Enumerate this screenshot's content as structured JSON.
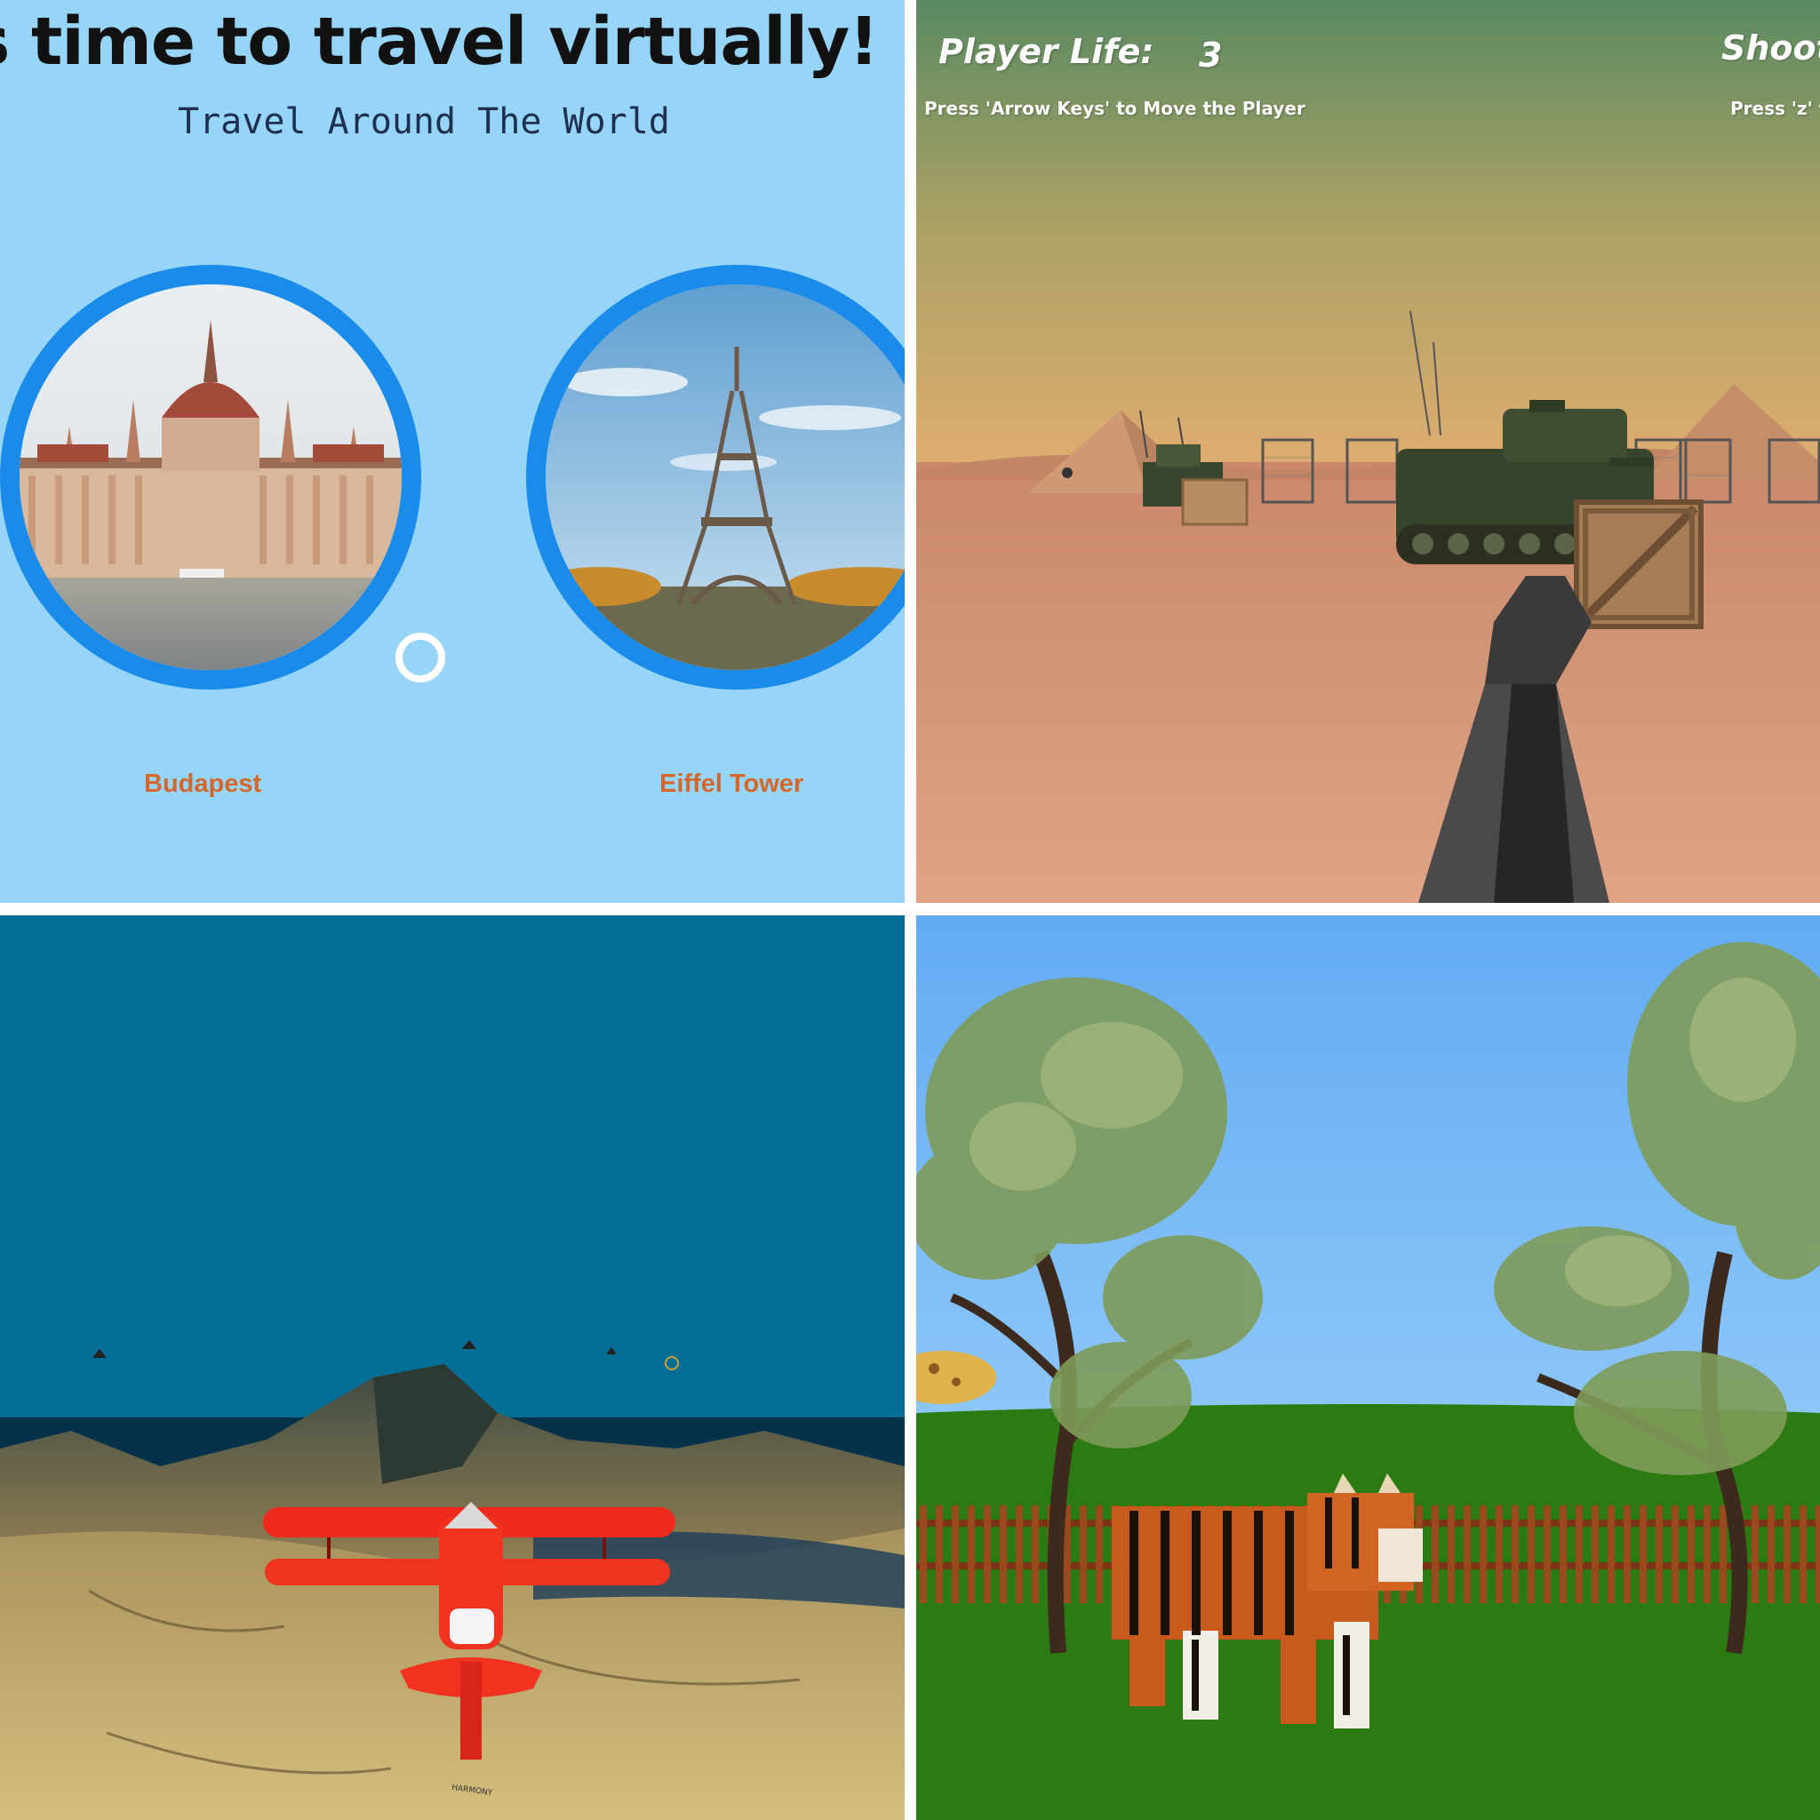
{
  "travel": {
    "title": "'s time to travel virtually!",
    "subtitle": "Travel Around The World",
    "places": [
      {
        "label": "Budapest",
        "image_icon": "parliament-building-icon"
      },
      {
        "label": "Eiffel Tower",
        "image_icon": "eiffel-tower-icon"
      }
    ],
    "colors": {
      "background": "#97d5f8",
      "ring": "#1a8be8",
      "label": "#d4672b"
    }
  },
  "tank_game": {
    "life_label": "Player Life:",
    "life_value": "3",
    "shoot_label": "Shoot",
    "move_hint": "Press 'Arrow Keys' to Move the Player",
    "shoot_hint": "Press 'z' t"
  },
  "flight_game": {
    "ground_sign": "HARMONY",
    "colors": {
      "sky": "#046e95",
      "plane": "#ee2a1a"
    }
  },
  "zoo": {
    "animal": "tiger",
    "colors": {
      "sky": "#6eb4f7",
      "grass": "#2b7a12"
    }
  }
}
